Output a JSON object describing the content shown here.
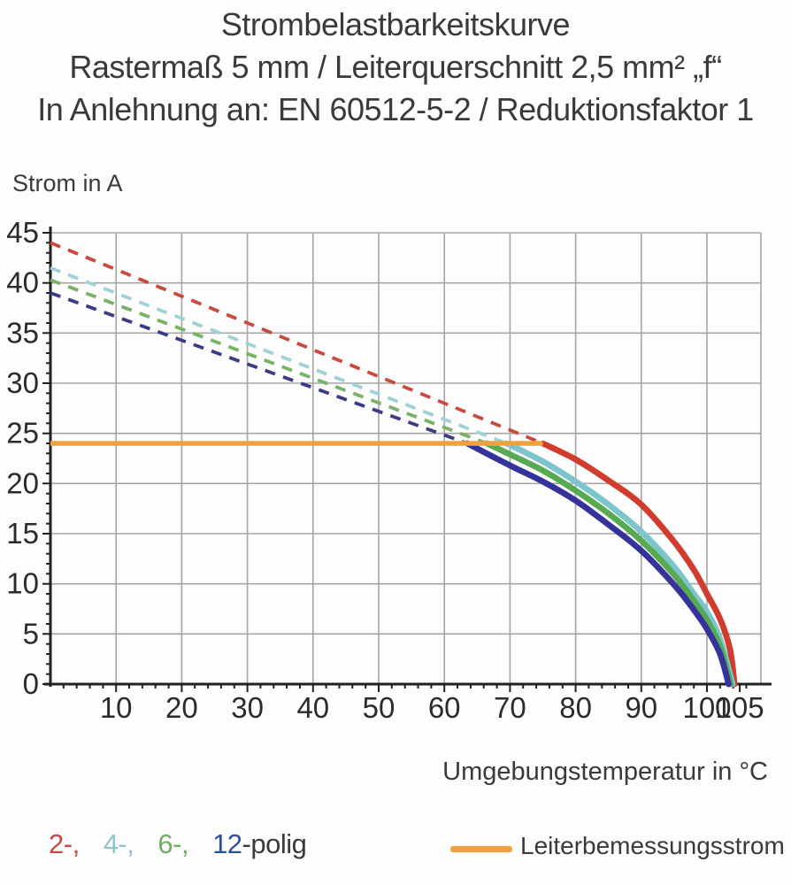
{
  "title": {
    "line1": "Strombelastbarkeitskurve",
    "line2": "Rastermaß 5 mm / Leiterquerschnitt 2,5 mm² „f“",
    "line3": "In Anlehnung an: EN 60512-5-2 / Reduktionsfaktor 1"
  },
  "chart_data": {
    "type": "line",
    "title": "Strombelastbarkeitskurve",
    "xlabel": "Umgebungstemperatur in °C",
    "ylabel": "Strom in A",
    "xlim": [
      0,
      108
    ],
    "ylim": [
      0,
      45
    ],
    "x_ticks": [
      10,
      20,
      30,
      40,
      50,
      60,
      70,
      80,
      90,
      100,
      105
    ],
    "y_ticks": [
      0,
      5,
      10,
      15,
      20,
      25,
      30,
      35,
      40,
      45
    ],
    "x_minor_step": 2,
    "y_minor_step": 1,
    "grid": true,
    "series": [
      {
        "name": "2-polig",
        "color": "#d23c2e",
        "dash_color": "#cb4a3e",
        "dashed_segment": {
          "x": [
            0,
            75
          ],
          "y": [
            44,
            24
          ]
        },
        "solid_points": [
          [
            75,
            24
          ],
          [
            80,
            22.4
          ],
          [
            85,
            20.3
          ],
          [
            90,
            17.9
          ],
          [
            95,
            14.2
          ],
          [
            98,
            11.4
          ],
          [
            100,
            9
          ],
          [
            102,
            6.5
          ],
          [
            103.5,
            3.5
          ],
          [
            104.2,
            0
          ]
        ]
      },
      {
        "name": "4-polig",
        "color": "#7cc5cd",
        "dash_color": "#9fd2d6",
        "dashed_segment": {
          "x": [
            0,
            69.5
          ],
          "y": [
            41.5,
            24
          ]
        },
        "solid_points": [
          [
            69.5,
            24
          ],
          [
            75,
            22.2
          ],
          [
            80,
            20.2
          ],
          [
            85,
            17.9
          ],
          [
            90,
            15.2
          ],
          [
            95,
            11.7
          ],
          [
            98,
            9
          ],
          [
            100,
            7.2
          ],
          [
            102,
            4.5
          ],
          [
            103.9,
            0
          ]
        ]
      },
      {
        "name": "6-polig",
        "color": "#57aa52",
        "dash_color": "#79b364",
        "dashed_segment": {
          "x": [
            0,
            66.5
          ],
          "y": [
            40.3,
            24
          ]
        },
        "solid_points": [
          [
            66.5,
            24
          ],
          [
            70,
            22.9
          ],
          [
            75,
            21.3
          ],
          [
            80,
            19.3
          ],
          [
            85,
            17
          ],
          [
            90,
            14.3
          ],
          [
            95,
            10.9
          ],
          [
            98,
            8.3
          ],
          [
            100,
            6.4
          ],
          [
            102,
            3.8
          ],
          [
            103.6,
            0
          ]
        ]
      },
      {
        "name": "12-polig",
        "color": "#35339a",
        "dash_color": "#3c3c85",
        "dashed_segment": {
          "x": [
            0,
            63.5
          ],
          "y": [
            39,
            24
          ]
        },
        "solid_points": [
          [
            63.5,
            24
          ],
          [
            70,
            21.8
          ],
          [
            75,
            20.2
          ],
          [
            80,
            18.3
          ],
          [
            85,
            15.9
          ],
          [
            90,
            13.3
          ],
          [
            95,
            9.9
          ],
          [
            98,
            7.4
          ],
          [
            100,
            5.5
          ],
          [
            102,
            3
          ],
          [
            103.3,
            0
          ]
        ]
      }
    ],
    "reference_line": {
      "label": "Leiterbemessungsstrom",
      "value": 24,
      "x_range": [
        0,
        75
      ],
      "color": "#f0a13d"
    }
  },
  "legend": {
    "items": [
      {
        "label": "2-,",
        "color": "#c94840"
      },
      {
        "label": "4-,",
        "color": "#8ec6cc"
      },
      {
        "label": "6-,",
        "color": "#6fae63"
      },
      {
        "label": "12",
        "color": "#2d4f9e"
      },
      {
        "label": "-polig",
        "color": "#3a3a3c"
      }
    ],
    "rated_current": {
      "label": "Leiterbemessungsstrom",
      "color": "#f0a13d"
    }
  },
  "colors": {
    "grid": "#a6a6a6",
    "axis": "#212121",
    "tick_label": "#2b2b2d",
    "text": "#3a3a3c",
    "background": "#fdfdfd"
  }
}
